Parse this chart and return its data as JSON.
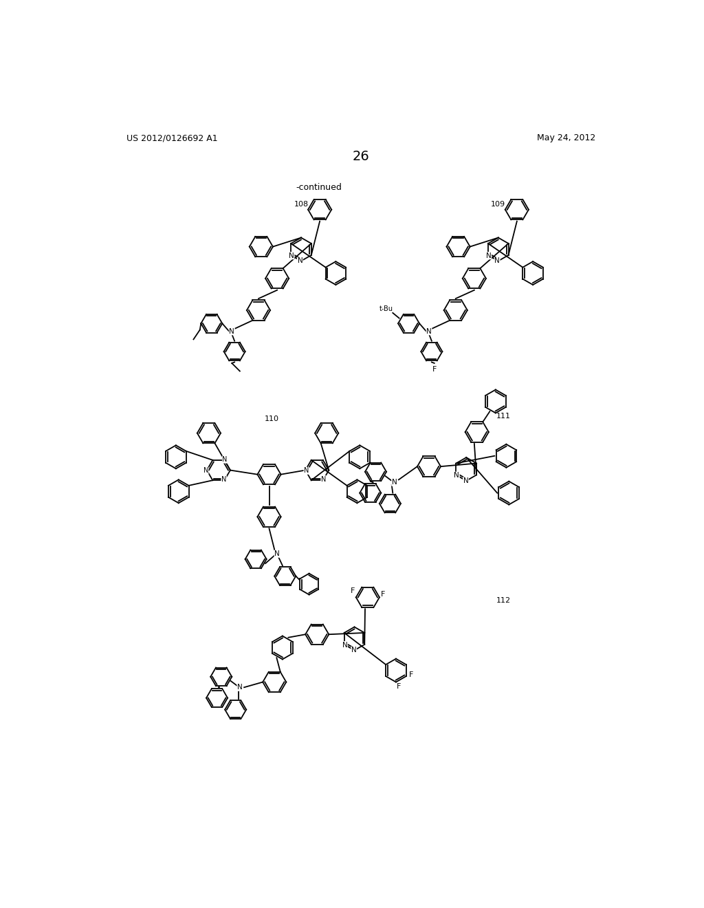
{
  "page_number": "26",
  "patent_number": "US 2012/0126692 A1",
  "patent_date": "May 24, 2012",
  "continued_label": "-continued",
  "background_color": "#ffffff",
  "text_color": "#000000",
  "compound_labels": [
    "108",
    "109",
    "110",
    "111",
    "112"
  ],
  "figsize": [
    10.24,
    13.2
  ],
  "dpi": 100
}
